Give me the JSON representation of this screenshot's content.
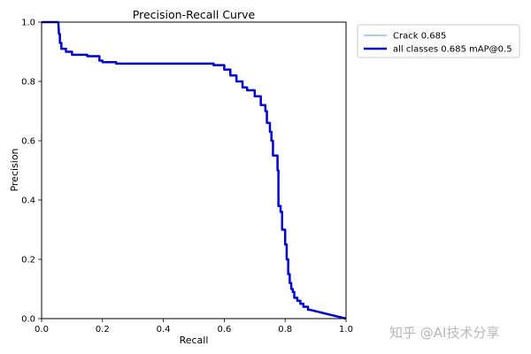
{
  "chart_data": {
    "type": "line",
    "title": "Precision-Recall Curve",
    "xlabel": "Recall",
    "ylabel": "Precision",
    "xlim": [
      0.0,
      1.0
    ],
    "ylim": [
      0.0,
      1.0
    ],
    "xticks": [
      "0.0",
      "0.2",
      "0.4",
      "0.6",
      "0.8",
      "1.0"
    ],
    "yticks": [
      "0.0",
      "0.2",
      "0.4",
      "0.6",
      "0.8",
      "1.0"
    ],
    "grid": false,
    "legend_position": "outside-right-top",
    "series": [
      {
        "name": "Crack 0.685",
        "color": "#5b9bd5",
        "style": "thin",
        "x": [
          0.0,
          0.055,
          0.057,
          0.06,
          0.06,
          0.065,
          0.065,
          0.08,
          0.08,
          0.1,
          0.1,
          0.15,
          0.15,
          0.19,
          0.19,
          0.2,
          0.2,
          0.245,
          0.245,
          0.565,
          0.565,
          0.6,
          0.6,
          0.62,
          0.62,
          0.64,
          0.64,
          0.66,
          0.66,
          0.675,
          0.675,
          0.7,
          0.7,
          0.72,
          0.72,
          0.735,
          0.735,
          0.74,
          0.74,
          0.75,
          0.75,
          0.755,
          0.755,
          0.76,
          0.76,
          0.775,
          0.775,
          0.778,
          0.778,
          0.785,
          0.785,
          0.79,
          0.79,
          0.8,
          0.8,
          0.805,
          0.805,
          0.81,
          0.81,
          0.815,
          0.815,
          0.82,
          0.82,
          0.825,
          0.825,
          0.83,
          0.83,
          0.84,
          0.84,
          0.85,
          0.85,
          0.86,
          0.86,
          0.875,
          0.875,
          0.88,
          1.0
        ],
        "y": [
          1.0,
          1.0,
          0.96,
          0.96,
          0.93,
          0.93,
          0.91,
          0.91,
          0.9,
          0.9,
          0.89,
          0.89,
          0.885,
          0.885,
          0.87,
          0.87,
          0.865,
          0.865,
          0.86,
          0.86,
          0.855,
          0.855,
          0.84,
          0.84,
          0.82,
          0.82,
          0.8,
          0.8,
          0.78,
          0.78,
          0.77,
          0.77,
          0.75,
          0.75,
          0.72,
          0.72,
          0.7,
          0.7,
          0.66,
          0.66,
          0.63,
          0.63,
          0.6,
          0.6,
          0.55,
          0.55,
          0.5,
          0.5,
          0.38,
          0.38,
          0.36,
          0.36,
          0.3,
          0.3,
          0.25,
          0.25,
          0.2,
          0.2,
          0.15,
          0.15,
          0.12,
          0.12,
          0.1,
          0.1,
          0.09,
          0.09,
          0.07,
          0.07,
          0.06,
          0.06,
          0.05,
          0.05,
          0.04,
          0.04,
          0.03,
          0.03,
          0.0
        ]
      },
      {
        "name": "all classes 0.685 mAP@0.5",
        "color": "#0000cc",
        "style": "thick",
        "x": [
          0.0,
          0.055,
          0.057,
          0.06,
          0.06,
          0.065,
          0.065,
          0.08,
          0.08,
          0.1,
          0.1,
          0.15,
          0.15,
          0.19,
          0.19,
          0.2,
          0.2,
          0.245,
          0.245,
          0.565,
          0.565,
          0.6,
          0.6,
          0.62,
          0.62,
          0.64,
          0.64,
          0.66,
          0.66,
          0.675,
          0.675,
          0.7,
          0.7,
          0.72,
          0.72,
          0.735,
          0.735,
          0.74,
          0.74,
          0.75,
          0.75,
          0.755,
          0.755,
          0.76,
          0.76,
          0.775,
          0.775,
          0.778,
          0.778,
          0.785,
          0.785,
          0.79,
          0.79,
          0.8,
          0.8,
          0.805,
          0.805,
          0.81,
          0.81,
          0.815,
          0.815,
          0.82,
          0.82,
          0.825,
          0.825,
          0.83,
          0.83,
          0.84,
          0.84,
          0.85,
          0.85,
          0.86,
          0.86,
          0.875,
          0.875,
          0.88,
          1.0
        ],
        "y": [
          1.0,
          1.0,
          0.96,
          0.96,
          0.93,
          0.93,
          0.91,
          0.91,
          0.9,
          0.9,
          0.89,
          0.89,
          0.885,
          0.885,
          0.87,
          0.87,
          0.865,
          0.865,
          0.86,
          0.86,
          0.855,
          0.855,
          0.84,
          0.84,
          0.82,
          0.82,
          0.8,
          0.8,
          0.78,
          0.78,
          0.77,
          0.77,
          0.75,
          0.75,
          0.72,
          0.72,
          0.7,
          0.7,
          0.66,
          0.66,
          0.63,
          0.63,
          0.6,
          0.6,
          0.55,
          0.55,
          0.5,
          0.5,
          0.38,
          0.38,
          0.36,
          0.36,
          0.3,
          0.3,
          0.25,
          0.25,
          0.2,
          0.2,
          0.15,
          0.15,
          0.12,
          0.12,
          0.1,
          0.1,
          0.09,
          0.09,
          0.07,
          0.07,
          0.06,
          0.06,
          0.05,
          0.05,
          0.04,
          0.04,
          0.03,
          0.03,
          0.0
        ]
      }
    ]
  },
  "watermark": {
    "text": "知乎 @AI技术分享"
  }
}
